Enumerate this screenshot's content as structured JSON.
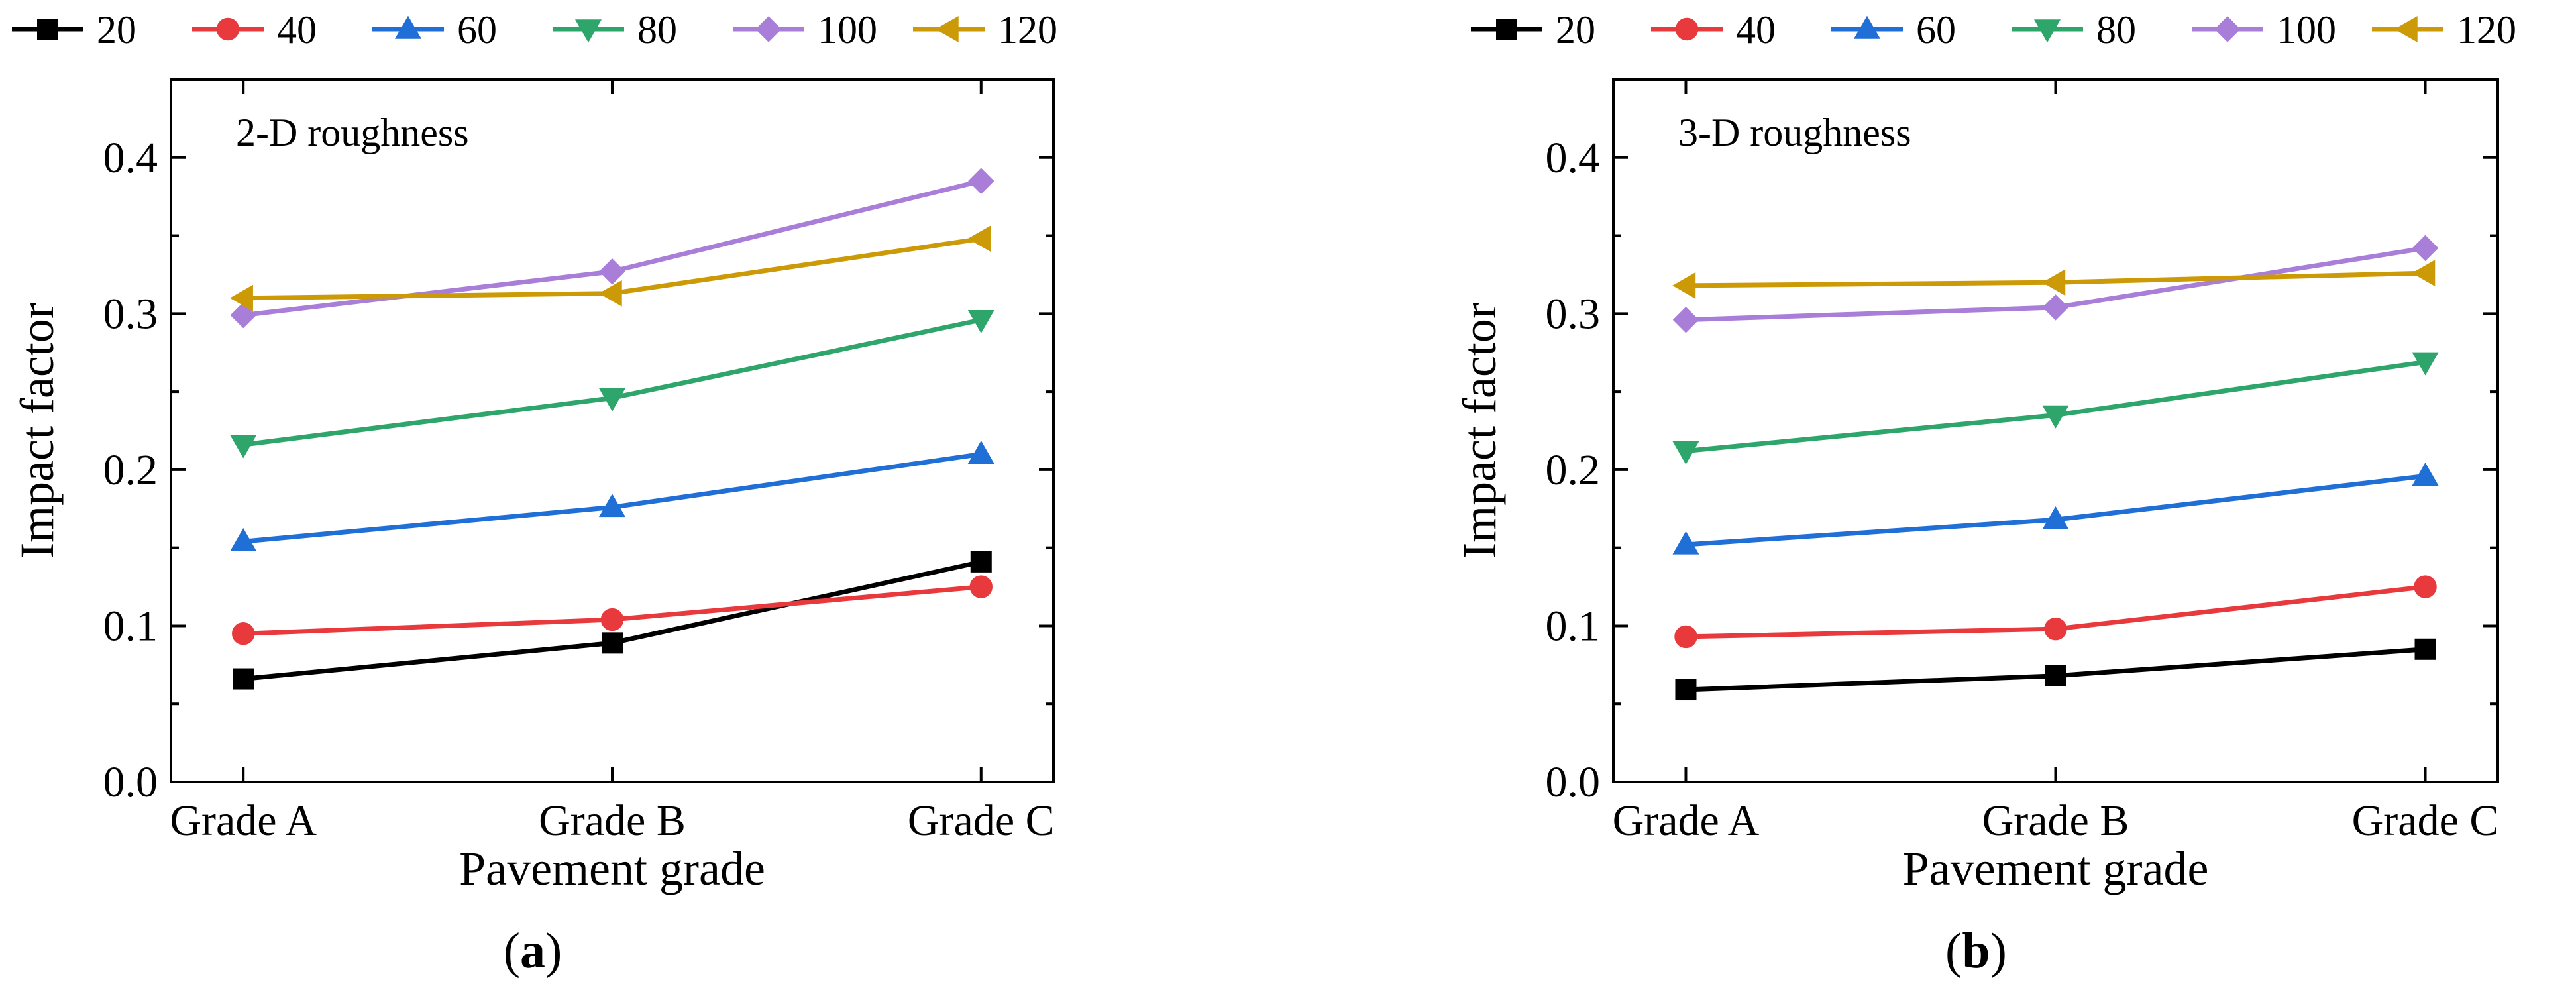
{
  "chart_data": [
    {
      "type": "line",
      "panel_label_prefix": "(",
      "panel_label_letter": "a",
      "panel_label_suffix": ")",
      "annotation": "2-D roughness",
      "xlabel": "Pavement grade",
      "ylabel": "Impact factor",
      "categories": [
        "Grade A",
        "Grade B",
        "Grade C"
      ],
      "ylim": [
        0.0,
        0.45
      ],
      "yticks": [
        0.0,
        0.1,
        0.2,
        0.3,
        0.4
      ],
      "ytick_labels": [
        "0.0",
        "0.1",
        "0.2",
        "0.3",
        "0.4"
      ],
      "legend_position": "top",
      "series": [
        {
          "name": "20",
          "color": "#000000",
          "marker": "square",
          "values": [
            0.066,
            0.089,
            0.141
          ]
        },
        {
          "name": "40",
          "color": "#e8393d",
          "marker": "circle",
          "values": [
            0.095,
            0.104,
            0.125
          ]
        },
        {
          "name": "60",
          "color": "#1f6fd6",
          "marker": "triangle-up",
          "values": [
            0.154,
            0.176,
            0.21
          ]
        },
        {
          "name": "80",
          "color": "#2ea56b",
          "marker": "triangle-down",
          "values": [
            0.216,
            0.246,
            0.296
          ]
        },
        {
          "name": "100",
          "color": "#a97ed8",
          "marker": "diamond",
          "values": [
            0.299,
            0.327,
            0.385
          ]
        },
        {
          "name": "120",
          "color": "#cc9a07",
          "marker": "triangle-left",
          "values": [
            0.31,
            0.313,
            0.348
          ]
        }
      ]
    },
    {
      "type": "line",
      "panel_label_prefix": "(",
      "panel_label_letter": "b",
      "panel_label_suffix": ")",
      "annotation": "3-D roughness",
      "xlabel": "Pavement grade",
      "ylabel": "Impact factor",
      "categories": [
        "Grade A",
        "Grade B",
        "Grade C"
      ],
      "ylim": [
        0.0,
        0.45
      ],
      "yticks": [
        0.0,
        0.1,
        0.2,
        0.3,
        0.4
      ],
      "ytick_labels": [
        "0.0",
        "0.1",
        "0.2",
        "0.3",
        "0.4"
      ],
      "legend_position": "top",
      "series": [
        {
          "name": "20",
          "color": "#000000",
          "marker": "square",
          "values": [
            0.059,
            0.068,
            0.085
          ]
        },
        {
          "name": "40",
          "color": "#e8393d",
          "marker": "circle",
          "values": [
            0.093,
            0.098,
            0.125
          ]
        },
        {
          "name": "60",
          "color": "#1f6fd6",
          "marker": "triangle-up",
          "values": [
            0.152,
            0.168,
            0.196
          ]
        },
        {
          "name": "80",
          "color": "#2ea56b",
          "marker": "triangle-down",
          "values": [
            0.212,
            0.235,
            0.269
          ]
        },
        {
          "name": "100",
          "color": "#a97ed8",
          "marker": "diamond",
          "values": [
            0.296,
            0.304,
            0.342
          ]
        },
        {
          "name": "120",
          "color": "#cc9a07",
          "marker": "triangle-left",
          "values": [
            0.318,
            0.32,
            0.326
          ]
        }
      ]
    }
  ]
}
